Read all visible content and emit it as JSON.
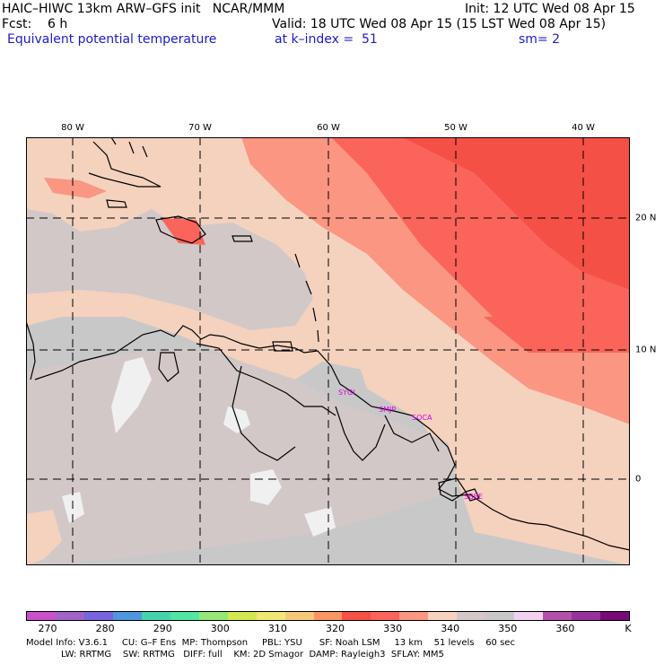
{
  "header": {
    "model_title": "HAIC–HIWC 13km ARW–GFS init   NCAR/MMM",
    "forecast": "Fcst:    6 h",
    "field_name": "Equivalent potential temperature",
    "init": "Init: 12 UTC Wed 08 Apr 15",
    "valid": "Valid: 18 UTC Wed 08 Apr 15 (15 LST Wed 08 Apr 15)",
    "level": "at k–index =  51",
    "smoothing": "sm= 2"
  },
  "map": {
    "longitude_labels": [
      "80 W",
      "70 W",
      "60 W",
      "50 W",
      "40 W"
    ],
    "latitude_labels": [
      "20 N",
      "10 N",
      "0"
    ],
    "station_labels": [
      "SYGI",
      "SMJP",
      "SOCA",
      "SBBE"
    ],
    "station_color": "#e000e0"
  },
  "colorbar": {
    "unit": "K",
    "tick_labels": [
      "270",
      "280",
      "290",
      "300",
      "310",
      "320",
      "330",
      "340",
      "350",
      "360"
    ],
    "colors": [
      "#c850c8",
      "#a064c8",
      "#7864dc",
      "#5096dc",
      "#46d2aa",
      "#50e6a0",
      "#96e678",
      "#d2e650",
      "#f0e678",
      "#f5c878",
      "#fa9664",
      "#f55046",
      "#fa645a",
      "#fa9682",
      "#f5d2be",
      "#d2c8c8",
      "#c8c8c8",
      "#f0d2f0",
      "#b450aa",
      "#96329a",
      "#780a78"
    ]
  },
  "footer": {
    "line1": "Model Info: V3.6.1     CU: G–F Ens  MP: Thompson     PBL: YSU      SF: Noah LSM     13 km    51 levels    60 sec",
    "line2": "LW: RRTMG    SW: RRTMG   DIFF: full    KM: 2D Smagor  DAMP: Rayleigh3  SFLAY: MM5"
  }
}
